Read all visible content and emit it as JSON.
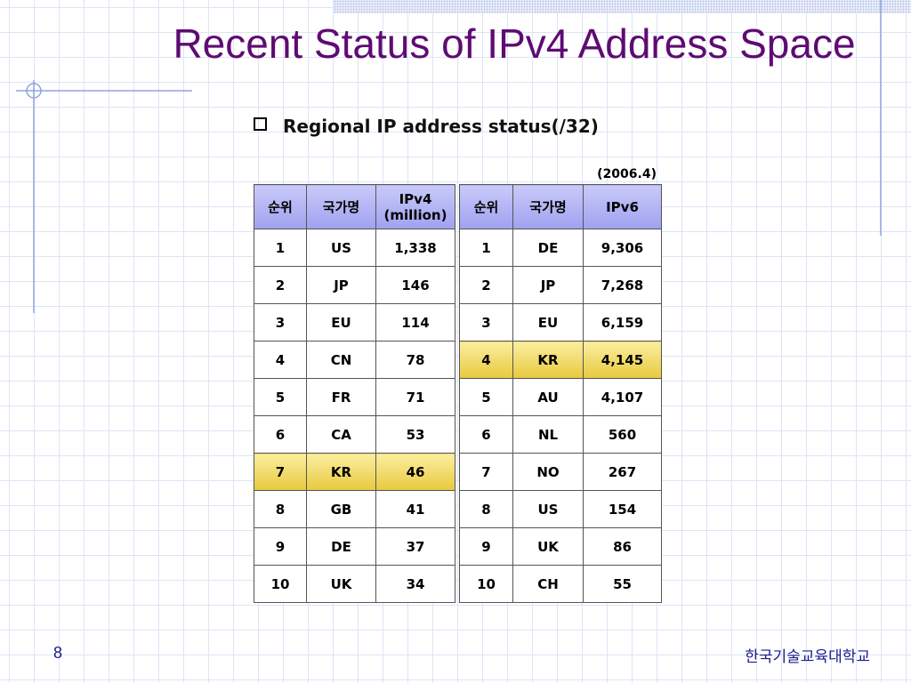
{
  "title": "Recent Status of IPv4 Address Space",
  "subtitle": "Regional IP address status(/32)",
  "date_note": "(2006.4)",
  "ipv4_table": {
    "header": [
      "순위",
      "국가명",
      "IPv4 (million)"
    ],
    "rows": [
      [
        "1",
        "US",
        "1,338"
      ],
      [
        "2",
        "JP",
        "146"
      ],
      [
        "3",
        "EU",
        "114"
      ],
      [
        "4",
        "CN",
        "78"
      ],
      [
        "5",
        "FR",
        "71"
      ],
      [
        "6",
        "CA",
        "53"
      ],
      [
        "7",
        "KR",
        "46"
      ],
      [
        "8",
        "GB",
        "41"
      ],
      [
        "9",
        "DE",
        "37"
      ],
      [
        "10",
        "UK",
        "34"
      ]
    ],
    "highlight_row": 6
  },
  "ipv6_table": {
    "header": [
      "순위",
      "국가명",
      "IPv6"
    ],
    "rows": [
      [
        "1",
        "DE",
        "9,306"
      ],
      [
        "2",
        "JP",
        "7,268"
      ],
      [
        "3",
        "EU",
        "6,159"
      ],
      [
        "4",
        "KR",
        "4,145"
      ],
      [
        "5",
        "AU",
        "4,107"
      ],
      [
        "6",
        "NL",
        "560"
      ],
      [
        "7",
        "NO",
        "267"
      ],
      [
        "8",
        "US",
        "154"
      ],
      [
        "9",
        "UK",
        "86"
      ],
      [
        "10",
        "CH",
        "55"
      ]
    ],
    "highlight_row": 3
  },
  "page_number": "8",
  "footer": "한국기술교육대학교"
}
